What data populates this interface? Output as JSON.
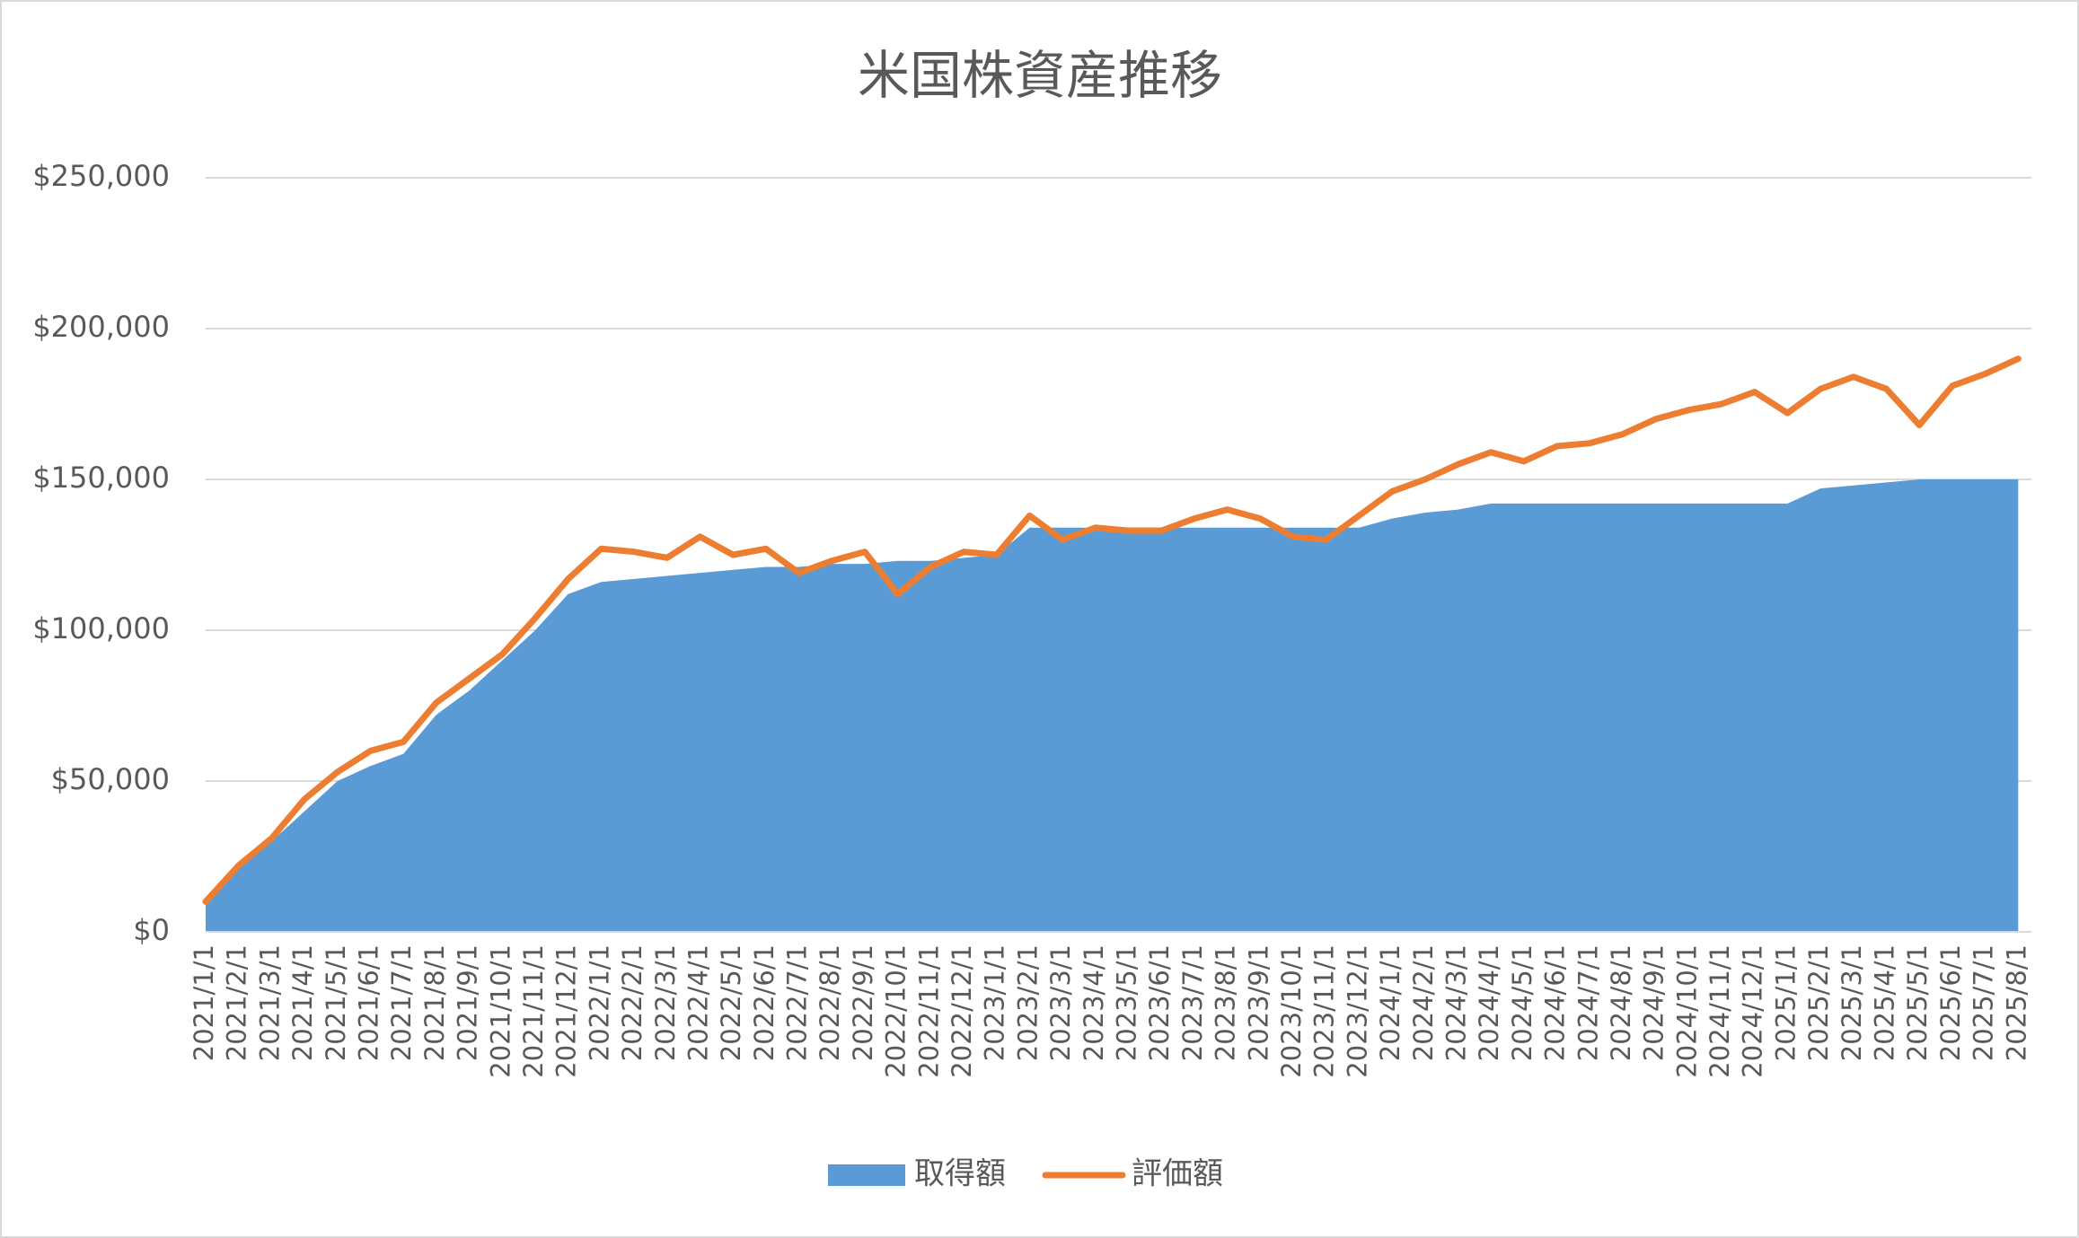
{
  "chart_data": {
    "type": "combo",
    "title": "米国株資産推移",
    "categories": [
      "2021/1/1",
      "2021/2/1",
      "2021/3/1",
      "2021/4/1",
      "2021/5/1",
      "2021/6/1",
      "2021/7/1",
      "2021/8/1",
      "2021/9/1",
      "2021/10/1",
      "2021/11/1",
      "2021/12/1",
      "2022/1/1",
      "2022/2/1",
      "2022/3/1",
      "2022/4/1",
      "2022/5/1",
      "2022/6/1",
      "2022/7/1",
      "2022/8/1",
      "2022/9/1",
      "2022/10/1",
      "2022/11/1",
      "2022/12/1",
      "2023/1/1",
      "2023/2/1",
      "2023/3/1",
      "2023/4/1",
      "2023/5/1",
      "2023/6/1",
      "2023/7/1",
      "2023/8/1",
      "2023/9/1",
      "2023/10/1",
      "2023/11/1",
      "2023/12/1",
      "2024/1/1",
      "2024/2/1",
      "2024/3/1",
      "2024/4/1",
      "2024/5/1",
      "2024/6/1",
      "2024/7/1",
      "2024/8/1",
      "2024/9/1",
      "2024/10/1",
      "2024/11/1",
      "2024/12/1",
      "2025/1/1",
      "2025/2/1",
      "2025/3/1",
      "2025/4/1",
      "2025/5/1",
      "2025/6/1",
      "2025/7/1",
      "2025/8/1"
    ],
    "series": [
      {
        "name": "取得額",
        "type": "area",
        "color": "#5b9bd5",
        "values": [
          10000,
          21000,
          30000,
          40000,
          50000,
          55000,
          59000,
          72000,
          80000,
          90000,
          100000,
          112000,
          116000,
          117000,
          118000,
          119000,
          120000,
          121000,
          121000,
          122000,
          122000,
          123000,
          123000,
          124000,
          125000,
          134000,
          134000,
          134000,
          134000,
          134000,
          134000,
          134000,
          134000,
          134000,
          134000,
          134000,
          137000,
          139000,
          140000,
          142000,
          142000,
          142000,
          142000,
          142000,
          142000,
          142000,
          142000,
          142000,
          142000,
          147000,
          148000,
          149000,
          150000,
          150000,
          150000,
          150000
        ]
      },
      {
        "name": "評価額",
        "type": "line",
        "color": "#ed7d31",
        "values": [
          10000,
          22000,
          31000,
          44000,
          53000,
          60000,
          63000,
          76000,
          84000,
          92000,
          104000,
          117000,
          127000,
          126000,
          124000,
          131000,
          125000,
          127000,
          119000,
          123000,
          126000,
          112000,
          121000,
          126000,
          125000,
          138000,
          130000,
          134000,
          133000,
          133000,
          137000,
          140000,
          137000,
          131000,
          130000,
          138000,
          146000,
          150000,
          155000,
          159000,
          156000,
          161000,
          162000,
          165000,
          170000,
          173000,
          175000,
          179000,
          172000,
          180000,
          184000,
          180000,
          168000,
          181000,
          185000,
          190000
        ]
      }
    ],
    "ylim": [
      0,
      250000
    ],
    "yticks": [
      {
        "value": 0,
        "label": "$0"
      },
      {
        "value": 50000,
        "label": "$50,000"
      },
      {
        "value": 100000,
        "label": "$100,000"
      },
      {
        "value": 150000,
        "label": "$150,000"
      },
      {
        "value": 200000,
        "label": "$200,000"
      },
      {
        "value": 250000,
        "label": "$250,000"
      }
    ],
    "grid": true,
    "legend": "bottom"
  }
}
